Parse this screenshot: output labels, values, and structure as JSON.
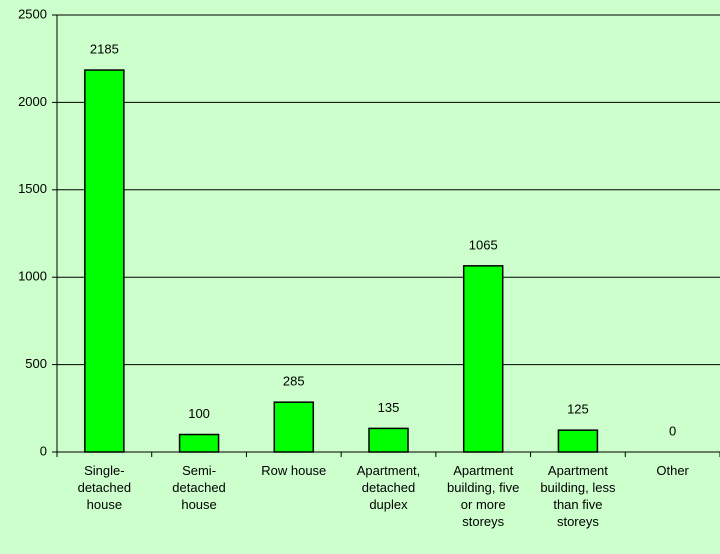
{
  "chart_data": {
    "type": "bar",
    "categories": [
      "Single-detached house",
      "Semi-detached house",
      "Row house",
      "Apartment, detached duplex",
      "Apartment building, five or more storeys",
      "Apartment building, less than five storeys",
      "Other"
    ],
    "values": [
      2185,
      100,
      285,
      135,
      1065,
      125,
      0
    ],
    "color": "#00ff00",
    "ylim": [
      0,
      2500
    ],
    "yticks": [
      0,
      500,
      1000,
      1500,
      2000,
      2500
    ],
    "grid": true
  }
}
